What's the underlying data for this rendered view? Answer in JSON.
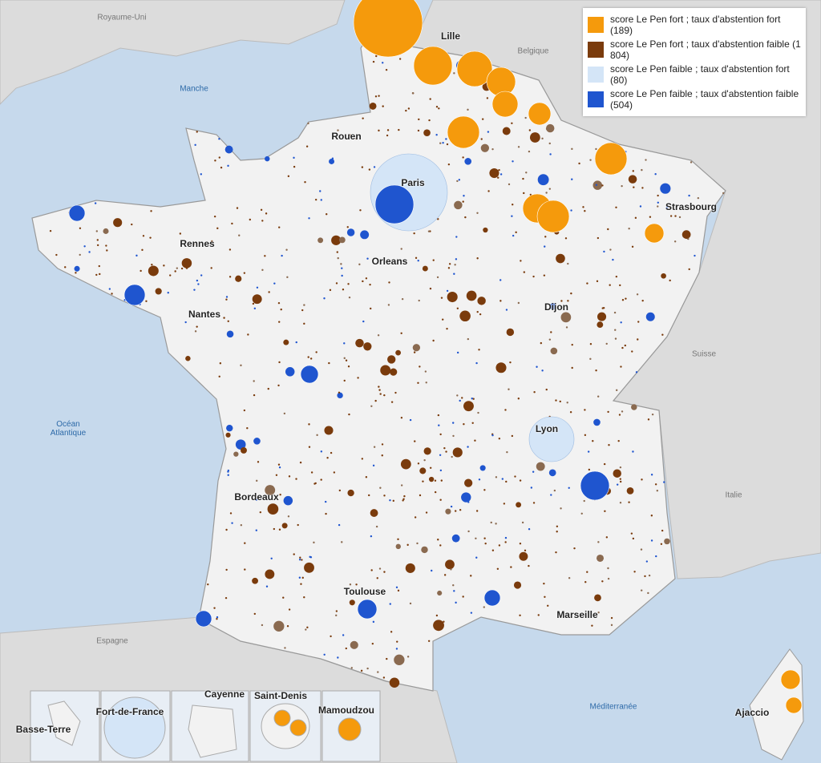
{
  "legend": {
    "items": [
      {
        "label": "score Le Pen fort ; taux d'abstention fort (189)",
        "color": "#f59a0c"
      },
      {
        "label": "score Le Pen fort ; taux d'abstention faible (1 804)",
        "color": "#7a3b0c"
      },
      {
        "label": "score Le Pen faible ; taux d'abstention fort (80)",
        "color": "#d4e5f7"
      },
      {
        "label": "score Le Pen faible ; taux d'abstention faible (504)",
        "color": "#1f55cf"
      }
    ]
  },
  "cities": [
    "Lille",
    "Rouen",
    "Paris",
    "Strasbourg",
    "Rennes",
    "Orleans",
    "Nantes",
    "Dijon",
    "Lyon",
    "Bordeaux",
    "Toulouse",
    "Marseille",
    "Ajaccio"
  ],
  "countries": [
    "Royaume-Uni",
    "Belgique",
    "Suisse",
    "Italie",
    "Espagne"
  ],
  "seas": [
    "Manche",
    "Océan Atlantique",
    "Méditerranée"
  ],
  "insets": [
    "Basse-Terre",
    "Fort-de-France",
    "Cayenne",
    "Saint-Denis",
    "Mamoudzou"
  ]
}
